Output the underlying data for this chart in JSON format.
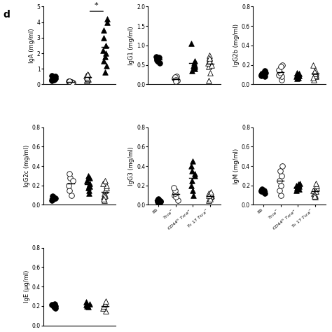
{
  "panel_d_label": "d",
  "groups": [
    "B6",
    "Tcra⁻",
    "CD44ʰ Tcra⁻",
    "Tₕ 17 Tcra⁻"
  ],
  "IgA": {
    "ylabel": "IgA (mg/ml)",
    "ylim": [
      0,
      5
    ],
    "yticks": [
      0,
      1,
      2,
      3,
      4,
      5
    ],
    "mean_line": [
      2.1
    ],
    "mean_line_group": 3,
    "sig_line": true,
    "sig_groups": [
      2,
      3
    ],
    "data": [
      {
        "x": 0,
        "y": [
          0.45,
          0.4,
          0.35,
          0.3,
          0.28,
          0.25,
          0.55,
          0.5,
          0.48
        ],
        "filled": true,
        "marker": "o"
      },
      {
        "x": 1,
        "y": [
          0.15,
          0.18,
          0.12,
          0.1,
          0.22,
          0.2
        ],
        "filled": false,
        "marker": "o"
      },
      {
        "x": 2,
        "y": [
          0.3,
          0.25,
          0.35,
          0.4,
          0.5,
          0.6,
          0.55,
          0.45,
          0.65
        ],
        "filled": false,
        "marker": "^"
      },
      {
        "x": 3,
        "y": [
          0.8,
          1.2,
          1.5,
          1.8,
          2.0,
          2.2,
          2.5,
          3.0,
          3.5,
          4.2,
          4.0
        ],
        "filled": true,
        "marker": "^"
      }
    ]
  },
  "IgG1": {
    "ylabel": "IgG1 (mg/ml)",
    "ylim": [
      0,
      2.0
    ],
    "yticks": [
      0,
      0.5,
      1.0,
      1.5,
      2.0
    ],
    "mean_line_group": 0,
    "mean_line_val": 0.65,
    "mean_line_group2": 2,
    "mean_line_val2": 0.5,
    "data": [
      {
        "x": 0,
        "y": [
          0.55,
          0.6,
          0.65,
          0.7,
          0.68,
          0.62,
          0.58,
          0.72
        ],
        "filled": true,
        "marker": "o"
      },
      {
        "x": 1,
        "y": [
          0.1,
          0.15,
          0.2,
          0.18,
          0.12,
          0.08
        ],
        "filled": false,
        "marker": "o"
      },
      {
        "x": 2,
        "y": [
          0.35,
          0.45,
          0.55,
          0.5,
          0.6,
          0.48,
          0.4,
          1.05
        ],
        "filled": true,
        "marker": "^"
      },
      {
        "x": 3,
        "y": [
          0.45,
          0.55,
          0.65,
          0.6,
          0.7,
          0.5,
          0.75,
          0.68,
          0.3,
          0.1
        ],
        "filled": false,
        "marker": "^"
      }
    ]
  },
  "IgG2b": {
    "ylabel": "IgG2b (mg/ml)",
    "ylim": [
      0,
      0.8
    ],
    "yticks": [
      0,
      0.2,
      0.4,
      0.6,
      0.8
    ],
    "mean_line_group": 0,
    "mean_line_val": 0.12,
    "data": [
      {
        "x": 0,
        "y": [
          0.08,
          0.1,
          0.12,
          0.14,
          0.11,
          0.09,
          0.13,
          0.1
        ],
        "filled": true,
        "marker": "o"
      },
      {
        "x": 1,
        "y": [
          0.05,
          0.08,
          0.1,
          0.12,
          0.15,
          0.2,
          0.18
        ],
        "filled": false,
        "marker": "o"
      },
      {
        "x": 2,
        "y": [
          0.06,
          0.08,
          0.1,
          0.12,
          0.09,
          0.07,
          0.11,
          0.1
        ],
        "filled": true,
        "marker": "^"
      },
      {
        "x": 3,
        "y": [
          0.05,
          0.08,
          0.12,
          0.15,
          0.1,
          0.09,
          0.11,
          0.13,
          0.07,
          0.2
        ],
        "filled": false,
        "marker": "^"
      }
    ]
  },
  "IgG2c": {
    "ylabel": "IgG2c (mg/ml)",
    "ylim": [
      0,
      0.8
    ],
    "yticks": [
      0,
      0.2,
      0.4,
      0.6,
      0.8
    ],
    "data": [
      {
        "x": 0,
        "y": [
          0.05,
          0.07,
          0.06,
          0.08,
          0.07,
          0.09,
          0.06
        ],
        "filled": true,
        "marker": "o"
      },
      {
        "x": 1,
        "y": [
          0.1,
          0.15,
          0.2,
          0.28,
          0.32,
          0.25
        ],
        "filled": false,
        "marker": "o"
      },
      {
        "x": 2,
        "y": [
          0.12,
          0.18,
          0.22,
          0.2,
          0.25,
          0.28,
          0.3,
          0.15,
          0.19
        ],
        "filled": true,
        "marker": "^"
      },
      {
        "x": 3,
        "y": [
          0.05,
          0.08,
          0.12,
          0.15,
          0.18,
          0.2,
          0.22,
          0.25,
          0.1,
          0.09,
          0.06
        ],
        "filled": false,
        "marker": "^"
      }
    ]
  },
  "IgG3": {
    "ylabel": "IgG3 (mg/ml)",
    "ylim": [
      0,
      0.8
    ],
    "yticks": [
      0,
      0.2,
      0.4,
      0.6,
      0.8
    ],
    "mean_line_group": 2,
    "mean_line_val": 0.25,
    "data": [
      {
        "x": 0,
        "y": [
          0.03,
          0.04,
          0.05,
          0.06,
          0.04,
          0.05,
          0.035
        ],
        "filled": true,
        "marker": "o"
      },
      {
        "x": 1,
        "y": [
          0.05,
          0.1,
          0.08,
          0.12,
          0.15,
          0.18
        ],
        "filled": false,
        "marker": "o"
      },
      {
        "x": 2,
        "y": [
          0.1,
          0.15,
          0.2,
          0.25,
          0.3,
          0.35,
          0.4,
          0.45,
          0.32
        ],
        "filled": true,
        "marker": "^"
      },
      {
        "x": 3,
        "y": [
          0.05,
          0.08,
          0.1,
          0.12,
          0.09,
          0.07,
          0.11,
          0.13,
          0.06,
          0.1
        ],
        "filled": false,
        "marker": "^"
      }
    ]
  },
  "IgM": {
    "ylabel": "IgM (mg/ml)",
    "ylim": [
      0,
      0.8
    ],
    "yticks": [
      0,
      0.2,
      0.4,
      0.6,
      0.8
    ],
    "mean_line_group": 0,
    "mean_line_val": 0.15,
    "data": [
      {
        "x": 0,
        "y": [
          0.12,
          0.14,
          0.16,
          0.15,
          0.13,
          0.15,
          0.14
        ],
        "filled": true,
        "marker": "o"
      },
      {
        "x": 1,
        "y": [
          0.1,
          0.15,
          0.2,
          0.25,
          0.3,
          0.35,
          0.4
        ],
        "filled": false,
        "marker": "o"
      },
      {
        "x": 2,
        "y": [
          0.15,
          0.18,
          0.2,
          0.22,
          0.19,
          0.17,
          0.21,
          0.16
        ],
        "filled": true,
        "marker": "^"
      },
      {
        "x": 3,
        "y": [
          0.08,
          0.1,
          0.12,
          0.15,
          0.18,
          0.2,
          0.14,
          0.11,
          0.09,
          0.22
        ],
        "filled": false,
        "marker": "^"
      }
    ]
  },
  "IgE": {
    "ylabel": "IgE (μg/ml)",
    "ylim": [
      0,
      0.8
    ],
    "yticks": [
      0,
      0.2,
      0.4,
      0.6,
      0.8
    ],
    "data": [
      {
        "x": 0,
        "y": [
          0.18,
          0.2,
          0.22,
          0.19,
          0.21
        ],
        "filled": true,
        "marker": "o"
      },
      {
        "x": 2,
        "y": [
          0.2,
          0.22,
          0.19,
          0.21,
          0.24
        ],
        "filled": true,
        "marker": "^"
      },
      {
        "x": 3,
        "y": [
          0.15,
          0.18,
          0.2,
          0.22,
          0.25
        ],
        "filled": false,
        "marker": "^"
      }
    ]
  },
  "marker_size": 30,
  "marker_color_filled": "black",
  "marker_color_open": "white",
  "marker_edge_color": "black",
  "line_color": "black",
  "font_size": 6,
  "tick_label_size": 5.5,
  "axis_label_size": 6
}
